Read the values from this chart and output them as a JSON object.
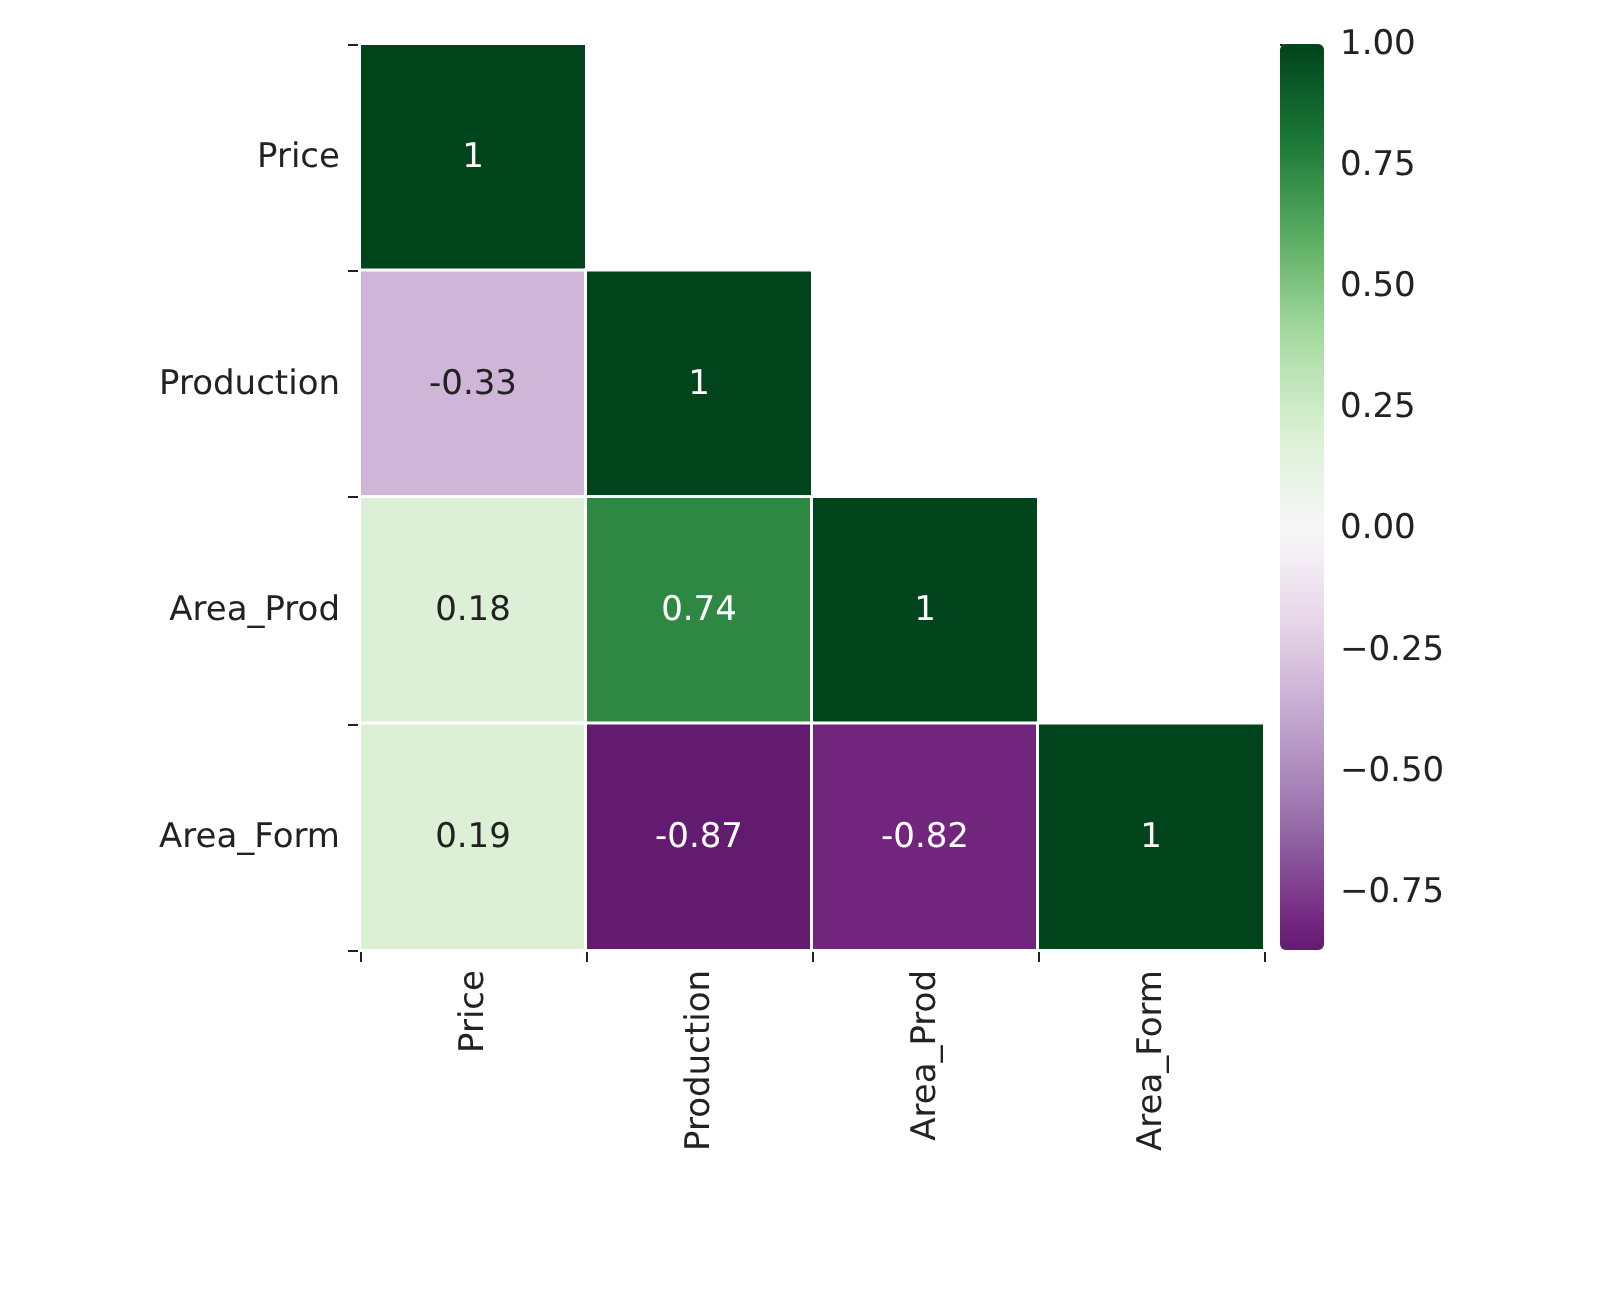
{
  "chart_data": {
    "type": "heatmap",
    "categories": [
      "Price",
      "Production",
      "Area_Prod",
      "Area_Form"
    ],
    "y_categories": [
      "Price",
      "Production",
      "Area_Prod",
      "Area_Form"
    ],
    "cells": [
      [
        1,
        null,
        null,
        null
      ],
      [
        -0.33,
        1,
        null,
        null
      ],
      [
        0.18,
        0.74,
        1,
        null
      ],
      [
        0.19,
        -0.87,
        -0.82,
        1
      ]
    ],
    "data_labels": true,
    "clim": [
      -0.87,
      1
    ],
    "cticks": [
      {
        "value": -0.75,
        "label": "−0.75"
      },
      {
        "value": -0.5,
        "label": "−0.50"
      },
      {
        "value": -0.25,
        "label": "−0.25"
      },
      {
        "value": 0,
        "label": "0.00"
      },
      {
        "value": 0.25,
        "label": "0.25"
      },
      {
        "value": 0.5,
        "label": "0.50"
      },
      {
        "value": 0.75,
        "label": "0.75"
      },
      {
        "value": 1,
        "label": "1.00"
      }
    ]
  }
}
